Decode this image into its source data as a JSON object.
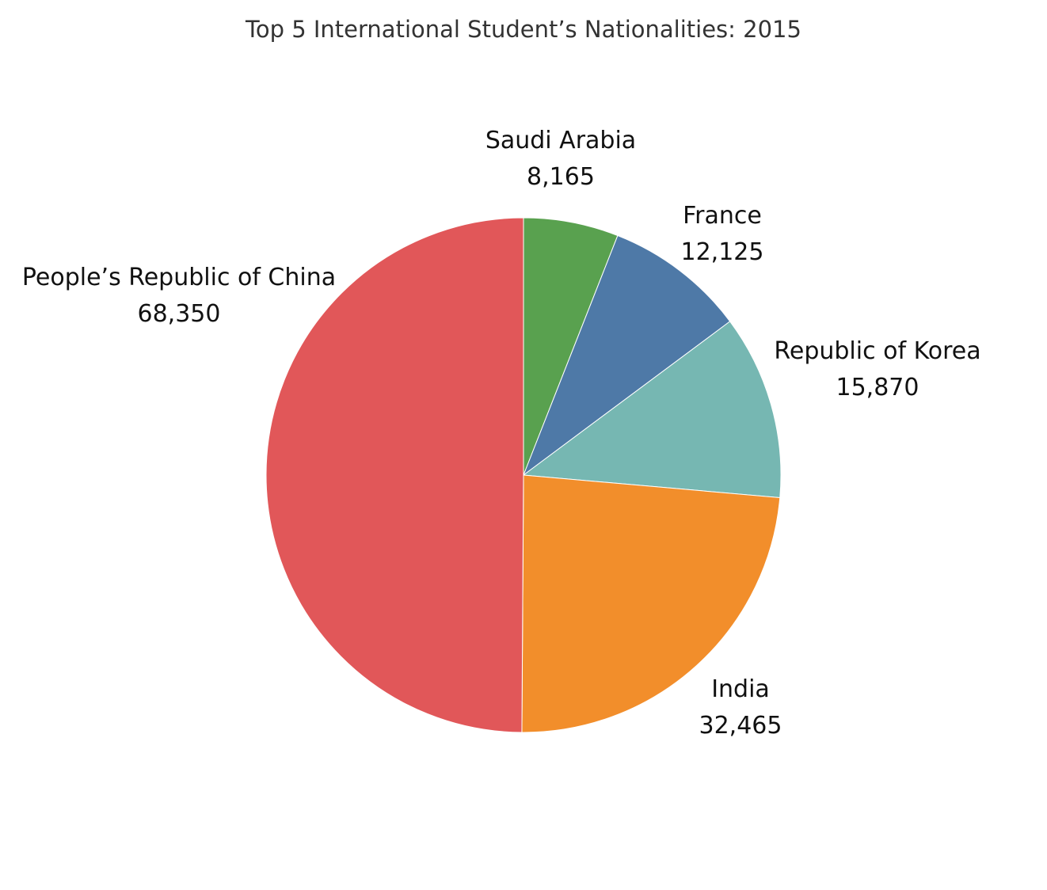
{
  "chart_data": {
    "type": "pie",
    "title": "Top 5 International Student’s Nationalities: 2015",
    "slices": [
      {
        "label": "Saudi Arabia",
        "value_label": "8,165",
        "value": 8165,
        "color": "#59a14f"
      },
      {
        "label": "France",
        "value_label": "12,125",
        "value": 12125,
        "color": "#4e79a7"
      },
      {
        "label": "Republic of Korea",
        "value_label": "15,870",
        "value": 15870,
        "color": "#76b7b2"
      },
      {
        "label": "India",
        "value_label": "32,465",
        "value": 32465,
        "color": "#f28e2b"
      },
      {
        "label": "People’s Republic of China",
        "value_label": "68,350",
        "value": 68350,
        "color": "#e15759"
      }
    ],
    "start_angle": "12 o'clock",
    "direction": "clockwise",
    "legend": "none"
  }
}
